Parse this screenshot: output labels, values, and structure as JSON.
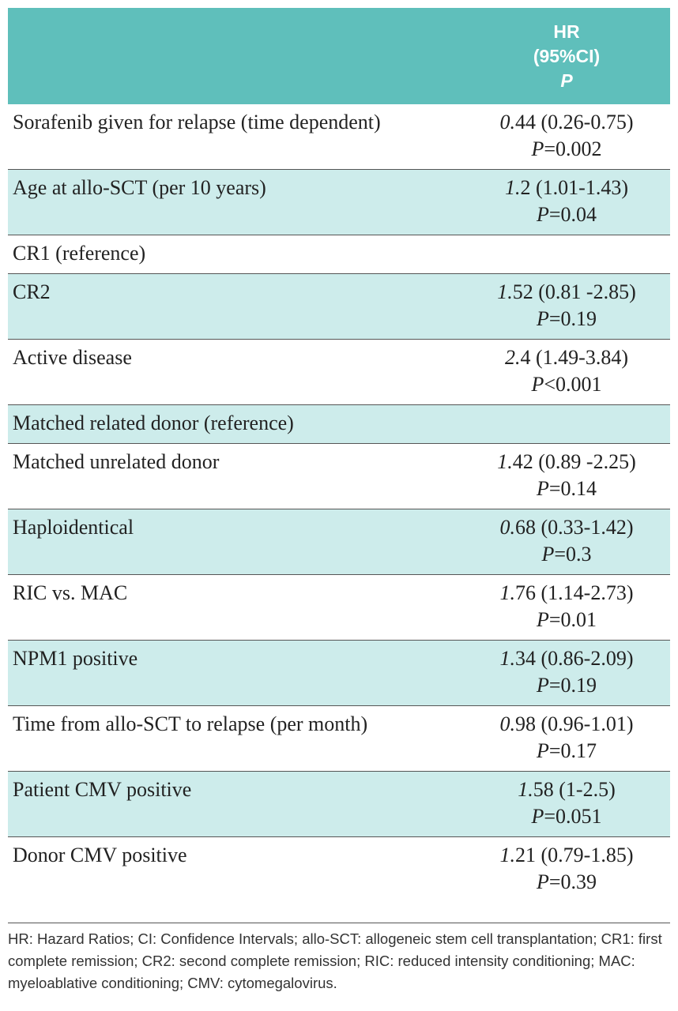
{
  "header": {
    "hr": "HR",
    "ci": "(95%CI)",
    "p": "P"
  },
  "table": {
    "rows": [
      {
        "label": "Sorafenib given for relapse (time dependent)",
        "hr": "0.44 (0.26-0.75)",
        "p": "P=0.002"
      },
      {
        "label": "Age at allo-SCT (per 10 years)",
        "hr": "1.2 (1.01-1.43)",
        "p": "P=0.04"
      },
      {
        "label": "CR1 (reference)"
      },
      {
        "label": "CR2",
        "hr": "1.52 (0.81 -2.85)",
        "p": "P=0.19"
      },
      {
        "label": "Active disease",
        "hr": "2.4 (1.49-3.84)",
        "p": "P<0.001"
      },
      {
        "label": "Matched related donor (reference)"
      },
      {
        "label": "Matched unrelated donor",
        "hr": "1.42 (0.89 -2.25)",
        "p": "P=0.14"
      },
      {
        "label": "Haploidentical",
        "hr": "0.68 (0.33-1.42)",
        "p": "P=0.3"
      },
      {
        "label": "RIC vs. MAC",
        "hr": "1.76 (1.14-2.73)",
        "p": "P=0.01"
      },
      {
        "label": "NPM1 positive",
        "hr": "1.34 (0.86-2.09)",
        "p": "P=0.19"
      },
      {
        "label": "Time from allo-SCT to relapse (per month)",
        "hr": "0.98 (0.96-1.01)",
        "p": "P=0.17"
      },
      {
        "label": "Patient CMV positive",
        "hr": "1.58 (1-2.5)",
        "p": "P=0.051"
      },
      {
        "label": "Donor CMV positive",
        "hr": "1.21 (0.79-1.85)",
        "p": "P=0.39"
      }
    ]
  },
  "footnote": "HR: Hazard Ratios; CI: Confidence Intervals; allo-SCT: allogeneic stem cell transplantation; CR1: first complete remission; CR2: second complete remission; RIC: reduced intensity conditioning; MAC: myeloablative conditioning; CMV: cytomegalovirus."
}
